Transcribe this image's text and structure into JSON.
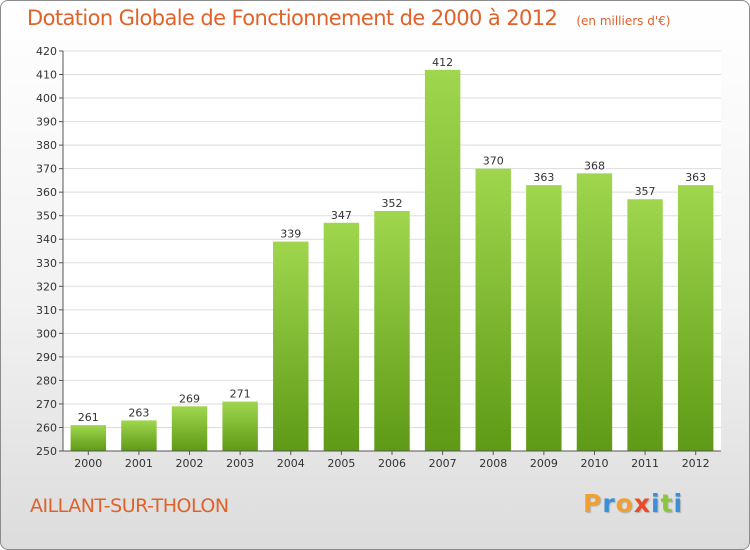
{
  "header": {
    "title": "Dotation Globale de Fonctionnement de 2000 à 2012",
    "unit": "(en milliers d'€)"
  },
  "footer": {
    "commune": "AILLANT-SUR-THOLON",
    "logo_letters": [
      "P",
      "r",
      "o",
      "x",
      "i",
      "t",
      "i"
    ],
    "logo_colors": [
      "#f0a030",
      "#3a8fd8",
      "#f0a030",
      "#e84a2a",
      "#3a8fd8",
      "#8cc63f",
      "#3a8fd8"
    ]
  },
  "colors": {
    "bar_light": "#9fd64e",
    "bar_dark": "#5e9a16",
    "grid": "#dddddd",
    "axis": "#555555",
    "title": "#e0622a"
  },
  "chart_data": {
    "type": "bar",
    "title": "Dotation Globale de Fonctionnement de 2000 à 2012",
    "xlabel": "",
    "ylabel": "",
    "categories": [
      "2000",
      "2001",
      "2002",
      "2003",
      "2004",
      "2005",
      "2006",
      "2007",
      "2008",
      "2009",
      "2010",
      "2011",
      "2012"
    ],
    "values": [
      261,
      263,
      269,
      271,
      339,
      347,
      352,
      412,
      370,
      363,
      368,
      357,
      363
    ],
    "ylim": [
      250,
      420
    ],
    "ytick_step": 10,
    "grid": true
  }
}
